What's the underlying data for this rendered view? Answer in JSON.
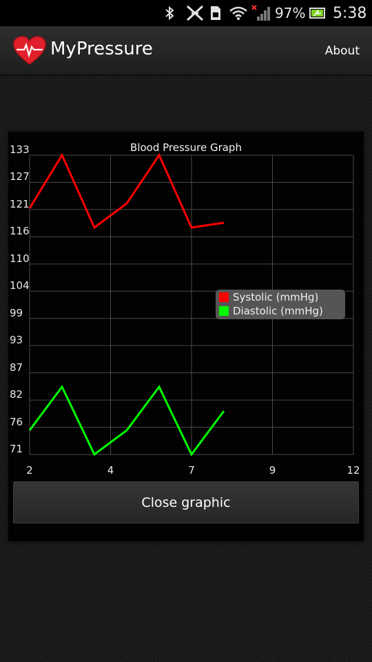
{
  "status_bar": {
    "battery_percent": "97%",
    "time": "5:38",
    "icons": [
      "bluetooth-icon",
      "nfc-icon",
      "sim-icon",
      "wifi-icon",
      "signal-icon",
      "battery-icon"
    ]
  },
  "app_bar": {
    "title": "MyPressure",
    "about_label": "About",
    "icon": "heart-pulse-icon"
  },
  "chart_data": {
    "type": "line",
    "title": "Blood Pressure Graph",
    "y_tick_labels": [
      "133",
      "127",
      "121",
      "116",
      "110",
      "104",
      "99",
      "93",
      "87",
      "82",
      "76",
      "71"
    ],
    "ylim": [
      71,
      133
    ],
    "x_tick_labels": [
      "2",
      "4",
      "7",
      "9",
      "12"
    ],
    "xlim": [
      2,
      12
    ],
    "grid": true,
    "legend_position": "right",
    "series": [
      {
        "name": "Systolic (mmHg)",
        "color": "#ff0000",
        "x": [
          2,
          3,
          4,
          5,
          6,
          7,
          8
        ],
        "values": [
          122,
          133,
          118,
          123,
          133,
          118,
          119
        ]
      },
      {
        "name": "Diastolic (mmHg)",
        "color": "#00ff00",
        "x": [
          2,
          3,
          4,
          5,
          6,
          7,
          8
        ],
        "values": [
          76,
          85,
          71,
          76,
          85,
          71,
          80
        ]
      }
    ]
  },
  "close_button_label": "Close graphic"
}
